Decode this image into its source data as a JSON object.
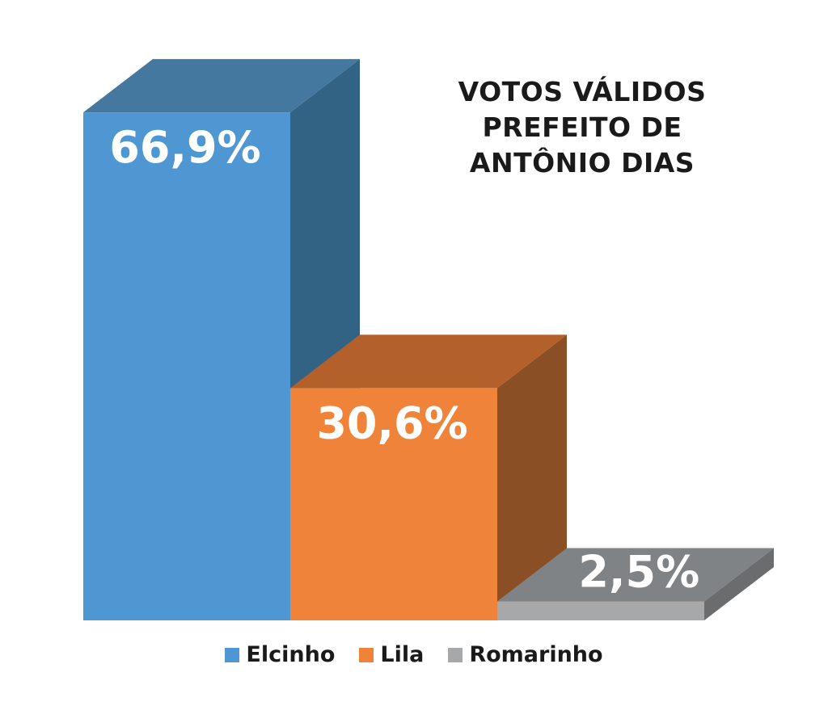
{
  "chart_data": {
    "type": "bar",
    "title_lines": [
      "VOTOS VÁLIDOS",
      "PREFEITO DE",
      "ANTÔNIO DIAS"
    ],
    "categories": [
      "Elcinho",
      "Lila",
      "Romarinho"
    ],
    "values": [
      66.9,
      30.6,
      2.5
    ],
    "value_labels": [
      "66,9%",
      "30,6%",
      "2,5%"
    ],
    "colors": {
      "front": [
        "#4f97d2",
        "#ef8339",
        "#a6a8aa"
      ],
      "top": [
        "#44789f",
        "#b4602b",
        "#808385"
      ],
      "side": [
        "#336384",
        "#8b4f25",
        "#6a6c6e"
      ]
    },
    "label_colors": [
      "#ffffff",
      "#ffffff",
      "#ffffff"
    ],
    "legend_placement": "bottom",
    "grid": false,
    "style": "3d"
  }
}
